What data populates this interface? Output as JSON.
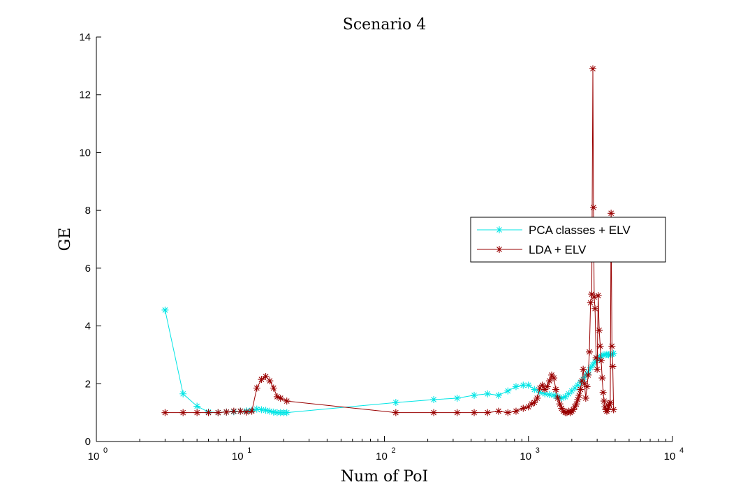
{
  "chart_data": {
    "type": "line",
    "title": "Scenario 4",
    "xlabel": "Num of PoI",
    "ylabel": "GE",
    "xscale": "log",
    "xlim": [
      1,
      10000
    ],
    "ylim": [
      0,
      14
    ],
    "yticks": [
      0,
      2,
      4,
      6,
      8,
      10,
      12,
      14
    ],
    "xticks": [
      1,
      10,
      100,
      1000,
      10000
    ],
    "xtick_labels": [
      {
        "base": "10",
        "exp": "0"
      },
      {
        "base": "10",
        "exp": "1"
      },
      {
        "base": "10",
        "exp": "2"
      },
      {
        "base": "10",
        "exp": "3"
      },
      {
        "base": "10",
        "exp": "4"
      }
    ],
    "grid": false,
    "legend_placement": "center-right",
    "series": [
      {
        "name": "PCA classes + ELV",
        "color": "#00e5e5",
        "marker": "asterisk",
        "x": [
          3,
          4,
          5,
          6,
          7,
          8,
          9,
          10,
          11,
          12,
          13,
          14,
          15,
          16,
          17,
          18,
          19,
          20,
          21,
          120,
          220,
          320,
          420,
          520,
          620,
          720,
          820,
          920,
          1000,
          1100,
          1200,
          1300,
          1400,
          1500,
          1600,
          1700,
          1800,
          1900,
          2000,
          2100,
          2200,
          2300,
          2400,
          2500,
          2600,
          2700,
          2800,
          2900,
          3000,
          3100,
          3200,
          3300,
          3400,
          3500,
          3600,
          3700,
          3800,
          3900
        ],
        "y": [
          4.55,
          1.65,
          1.22,
          1.02,
          1.0,
          1.02,
          1.03,
          1.05,
          1.06,
          1.08,
          1.12,
          1.1,
          1.08,
          1.05,
          1.02,
          1.0,
          1.0,
          1.0,
          1.0,
          1.35,
          1.45,
          1.5,
          1.6,
          1.65,
          1.6,
          1.75,
          1.9,
          1.95,
          1.95,
          1.8,
          1.7,
          1.65,
          1.62,
          1.6,
          1.55,
          1.5,
          1.55,
          1.65,
          1.75,
          1.85,
          1.95,
          2.05,
          2.15,
          2.3,
          2.4,
          2.55,
          2.65,
          2.75,
          2.85,
          2.9,
          2.95,
          3.0,
          3.0,
          3.02,
          3.0,
          3.0,
          3.02,
          3.05
        ]
      },
      {
        "name": "LDA + ELV",
        "color": "#990000",
        "marker": "asterisk",
        "x": [
          3,
          4,
          5,
          6,
          7,
          8,
          9,
          10,
          11,
          12,
          13,
          14,
          15,
          16,
          17,
          18,
          19,
          21,
          120,
          220,
          320,
          420,
          520,
          620,
          720,
          820,
          920,
          1000,
          1050,
          1100,
          1150,
          1200,
          1250,
          1300,
          1350,
          1400,
          1450,
          1500,
          1550,
          1600,
          1650,
          1700,
          1750,
          1800,
          1850,
          1900,
          1950,
          2000,
          2050,
          2100,
          2150,
          2200,
          2250,
          2300,
          2350,
          2400,
          2450,
          2500,
          2550,
          2600,
          2650,
          2700,
          2750,
          2800,
          2830,
          2860,
          2900,
          2950,
          3000,
          3050,
          3100,
          3150,
          3200,
          3250,
          3300,
          3350,
          3400,
          3450,
          3500,
          3550,
          3600,
          3650,
          3700,
          3750,
          3800,
          3850,
          3900
        ],
        "y": [
          1.0,
          1.0,
          1.0,
          1.0,
          1.0,
          1.02,
          1.05,
          1.05,
          1.02,
          1.05,
          1.85,
          2.15,
          2.25,
          2.1,
          1.85,
          1.55,
          1.5,
          1.4,
          1.0,
          1.0,
          1.0,
          1.0,
          1.0,
          1.05,
          1.0,
          1.05,
          1.15,
          1.2,
          1.3,
          1.35,
          1.5,
          1.85,
          1.95,
          1.8,
          1.9,
          2.1,
          2.3,
          2.2,
          1.8,
          1.5,
          1.3,
          1.15,
          1.05,
          1.0,
          1.0,
          1.05,
          1.0,
          1.05,
          1.1,
          1.2,
          1.3,
          1.45,
          1.6,
          1.8,
          2.1,
          2.5,
          2.0,
          1.5,
          1.9,
          2.3,
          3.1,
          4.8,
          5.1,
          12.9,
          8.1,
          5.0,
          4.6,
          2.9,
          2.5,
          5.05,
          3.85,
          3.3,
          2.8,
          2.2,
          1.7,
          1.4,
          1.2,
          1.1,
          1.05,
          1.1,
          1.2,
          1.3,
          1.35,
          7.9,
          3.3,
          2.6,
          1.1
        ]
      }
    ]
  }
}
